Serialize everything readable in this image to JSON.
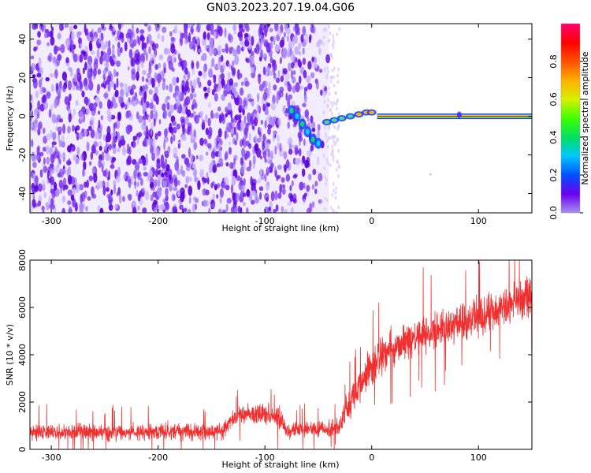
{
  "title": "GN03.2023.207.19.04.G06",
  "chart_data": [
    {
      "type": "heatmap",
      "xlabel": "Height of straight line (km)",
      "ylabel": "Frequency (Hz)",
      "xlim": [
        -320,
        150
      ],
      "ylim": [
        -50,
        48
      ],
      "xticks": [
        -300,
        -200,
        -100,
        0,
        100
      ],
      "yticks": [
        -40,
        -20,
        0,
        20,
        40
      ],
      "colorbar": {
        "label": "Normalized spectral amplitude",
        "ticks": [
          0.0,
          0.2,
          0.4,
          0.6,
          0.8
        ],
        "range": [
          0,
          1
        ],
        "colormap": [
          "#a890f0",
          "#6a00f0",
          "#0050ff",
          "#00c8ff",
          "#00e060",
          "#40ff00",
          "#d8f000",
          "#ffb000",
          "#ff5000",
          "#ff0000",
          "#ff0070"
        ]
      },
      "features": {
        "noise_region_x": [
          -320,
          -40
        ],
        "carrier_start_x": 5,
        "carrier_frequency_hz": 0,
        "descending_trace": [
          [
            -75,
            3
          ],
          [
            -70,
            0
          ],
          [
            -65,
            -4
          ],
          [
            -60,
            -8
          ],
          [
            -55,
            -12
          ],
          [
            -50,
            -14
          ]
        ],
        "ramp_trace": [
          [
            -42,
            -3
          ],
          [
            -35,
            -2
          ],
          [
            -28,
            -1
          ],
          [
            -20,
            0
          ],
          [
            -12,
            1
          ],
          [
            -5,
            2
          ],
          [
            0,
            2
          ]
        ]
      }
    },
    {
      "type": "line",
      "xlabel": "Height of straight line (km)",
      "ylabel": "SNR (10 * v/v)",
      "xlim": [
        -320,
        150
      ],
      "ylim": [
        0,
        8000
      ],
      "xticks": [
        -300,
        -200,
        -100,
        0,
        100
      ],
      "yticks": [
        0,
        2000,
        4000,
        6000,
        8000
      ],
      "color": "#f03030",
      "envelope": {
        "x": [
          -320,
          -140,
          -130,
          -120,
          -100,
          -85,
          -80,
          -30,
          -25,
          -10,
          0,
          10,
          30,
          50,
          100,
          150
        ],
        "mean": [
          700,
          750,
          1300,
          1500,
          1500,
          1300,
          800,
          900,
          1500,
          2800,
          3500,
          4000,
          4500,
          4800,
          5600,
          6500
        ],
        "band": [
          500,
          500,
          600,
          600,
          700,
          600,
          450,
          500,
          900,
          1100,
          1200,
          1200,
          1200,
          1200,
          1200,
          1200
        ]
      }
    }
  ]
}
